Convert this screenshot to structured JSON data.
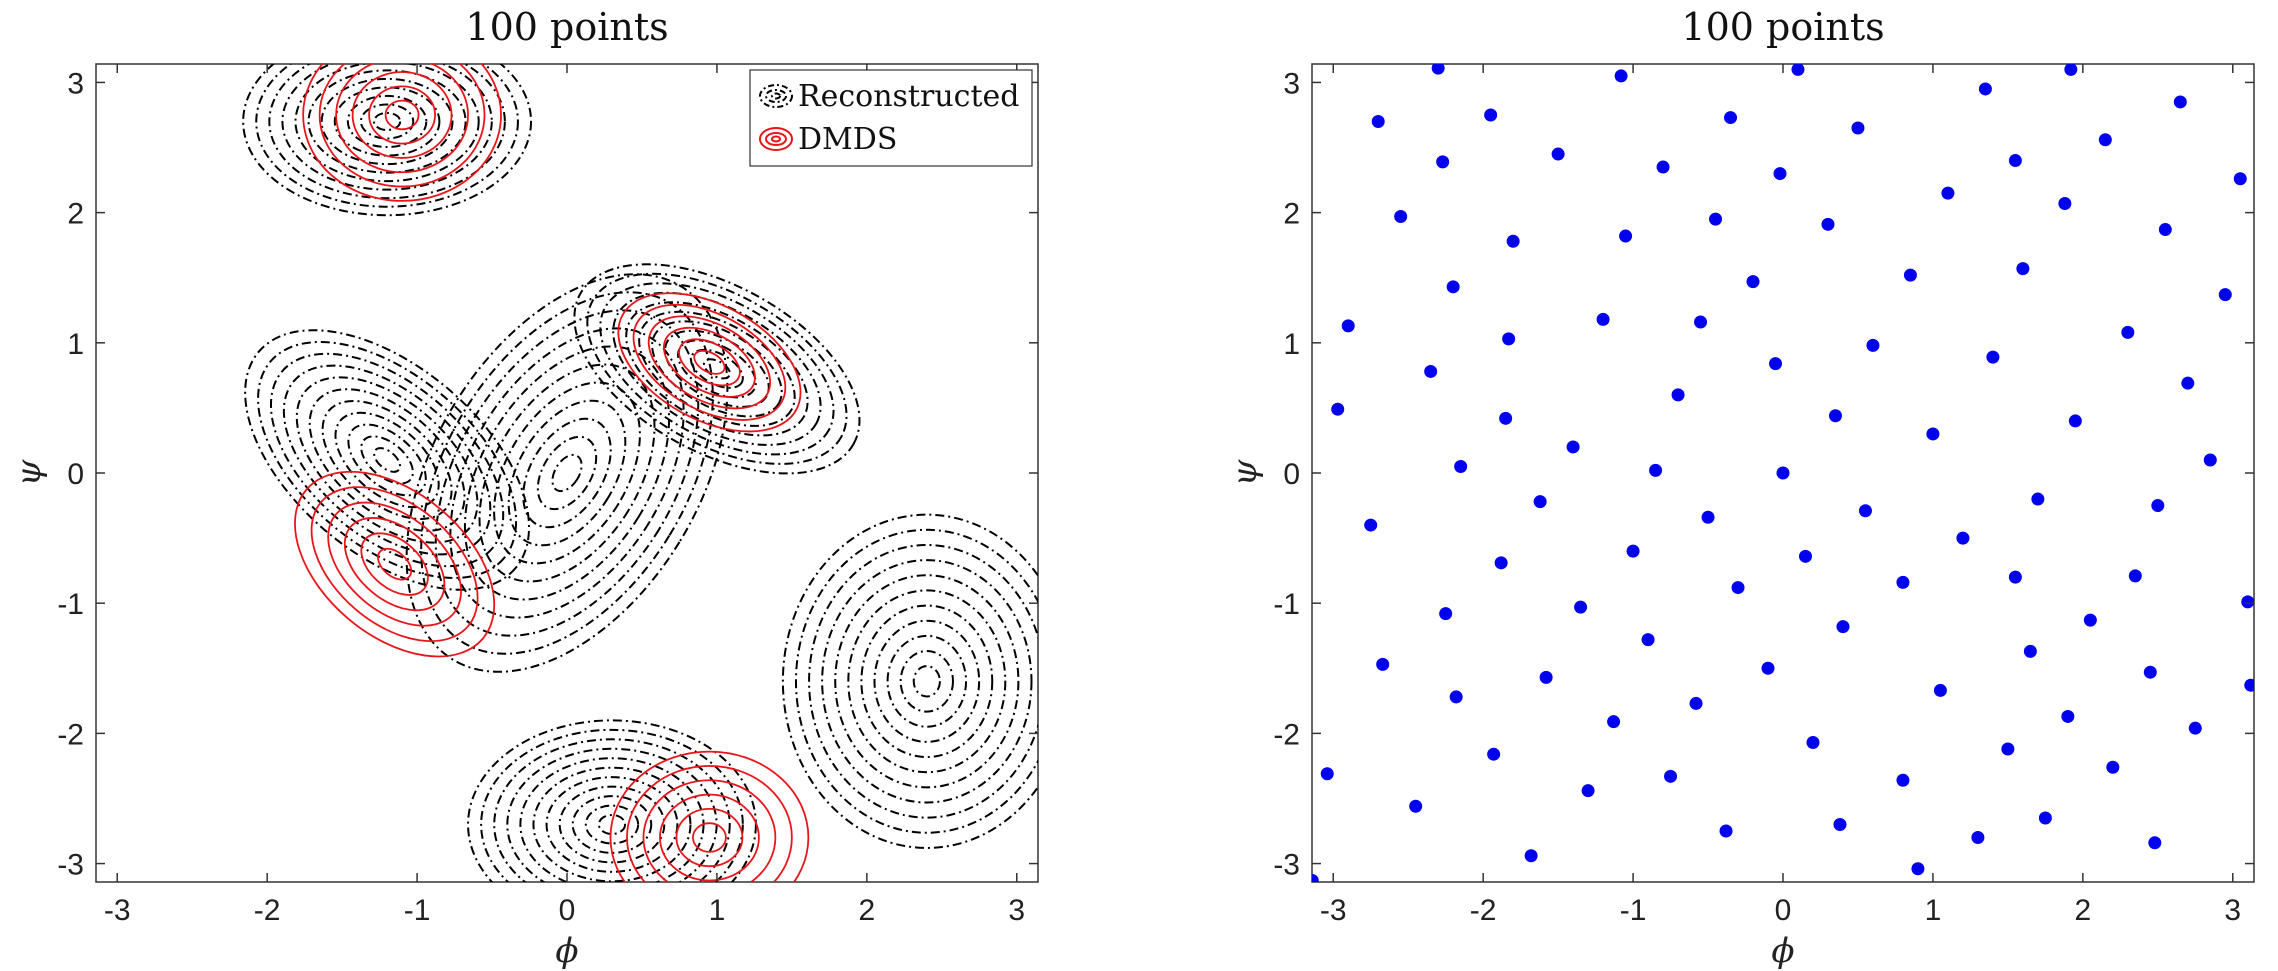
{
  "chart_data": [
    {
      "type": "contour",
      "title": "100 points",
      "xlabel": "ϕ",
      "ylabel": "ψ",
      "xlim": [
        -3.14159,
        3.14159
      ],
      "ylim": [
        -3.14159,
        3.14159
      ],
      "xticks": [
        "-3",
        "-2",
        "-1",
        "0",
        "1",
        "2",
        "3"
      ],
      "yticks": [
        "3",
        "2",
        "1",
        "0",
        "-1",
        "-2",
        "-3"
      ],
      "legend": {
        "placement": "top-right",
        "entries": [
          "Reconstructed",
          "DMDS"
        ]
      },
      "series": [
        {
          "name": "Reconstructed",
          "color": "#000000",
          "style": "dash-dot",
          "features": [
            {
              "kind": "min",
              "x": 0.0,
              "y": 0.0,
              "sx": 0.55,
              "sy": 1.05,
              "rot": -0.55,
              "amp": 1.2
            },
            {
              "kind": "min",
              "x": 0.3,
              "y": -2.7,
              "sx": 0.6,
              "sy": 0.5,
              "rot": 0.0,
              "amp": 0.7
            },
            {
              "kind": "min",
              "x": 2.4,
              "y": -1.6,
              "sx": 0.6,
              "sy": 0.8,
              "rot": 0.0,
              "amp": 0.7
            },
            {
              "kind": "min",
              "x": -1.2,
              "y": 2.7,
              "sx": 0.6,
              "sy": 0.45,
              "rot": 0.0,
              "amp": 0.5
            },
            {
              "kind": "max",
              "x": -1.2,
              "y": 0.1,
              "sx": 0.7,
              "sy": 0.45,
              "rot": -0.7,
              "amp": 0.7
            },
            {
              "kind": "max",
              "x": 1.0,
              "y": 0.8,
              "sx": 0.65,
              "sy": 0.4,
              "rot": -0.5,
              "amp": 0.7
            }
          ]
        },
        {
          "name": "DMDS",
          "color": "#e8161b",
          "style": "solid",
          "features": [
            {
              "kind": "max",
              "x": -1.15,
              "y": -0.7,
              "sx": 0.35,
              "sy": 0.25,
              "rot": -0.7
            },
            {
              "kind": "max",
              "x": 0.95,
              "y": 0.85,
              "sx": 0.3,
              "sy": 0.2,
              "rot": -0.5
            },
            {
              "kind": "min",
              "x": 0.95,
              "y": -2.8,
              "sx": 0.3,
              "sy": 0.3,
              "rot": 0.0
            },
            {
              "kind": "min",
              "x": -1.1,
              "y": 2.75,
              "sx": 0.3,
              "sy": 0.3,
              "rot": 0.0
            }
          ]
        }
      ]
    },
    {
      "type": "scatter",
      "title": "100 points",
      "xlabel": "ϕ",
      "ylabel": "ψ",
      "xlim": [
        -3.14159,
        3.14159
      ],
      "ylim": [
        -3.14159,
        3.14159
      ],
      "xticks": [
        "-3",
        "-2",
        "-1",
        "0",
        "1",
        "2",
        "3"
      ],
      "yticks": [
        "3",
        "2",
        "1",
        "0",
        "-1",
        "-2",
        "-3"
      ],
      "grid": false,
      "color": "#0000ee",
      "points": [
        [
          -3.14,
          -3.13
        ],
        [
          -3.04,
          -2.31
        ],
        [
          -2.97,
          0.49
        ],
        [
          -2.9,
          1.13
        ],
        [
          -2.75,
          -0.4
        ],
        [
          -2.7,
          2.7
        ],
        [
          -2.67,
          -1.47
        ],
        [
          -2.55,
          1.97
        ],
        [
          -2.45,
          -2.56
        ],
        [
          -2.35,
          0.78
        ],
        [
          -2.3,
          3.11
        ],
        [
          -2.27,
          2.39
        ],
        [
          -2.25,
          -1.08
        ],
        [
          -2.2,
          1.43
        ],
        [
          -2.18,
          -1.72
        ],
        [
          -2.15,
          0.05
        ],
        [
          -1.95,
          2.75
        ],
        [
          -1.93,
          -2.16
        ],
        [
          -1.88,
          -0.69
        ],
        [
          -1.85,
          0.42
        ],
        [
          -1.83,
          1.03
        ],
        [
          -1.8,
          1.78
        ],
        [
          -1.68,
          -2.94
        ],
        [
          -1.62,
          -0.22
        ],
        [
          -1.58,
          -1.57
        ],
        [
          -1.5,
          2.45
        ],
        [
          -1.4,
          0.2
        ],
        [
          -1.35,
          -1.03
        ],
        [
          -1.3,
          -2.44
        ],
        [
          -1.2,
          1.18
        ],
        [
          -1.13,
          -1.91
        ],
        [
          -1.08,
          3.05
        ],
        [
          -1.05,
          1.82
        ],
        [
          -1.0,
          -0.6
        ],
        [
          -0.9,
          -1.28
        ],
        [
          -0.85,
          0.02
        ],
        [
          -0.8,
          2.35
        ],
        [
          -0.75,
          -2.33
        ],
        [
          -0.7,
          0.6
        ],
        [
          -0.58,
          -1.77
        ],
        [
          -0.55,
          1.16
        ],
        [
          -0.5,
          -0.34
        ],
        [
          -0.45,
          1.95
        ],
        [
          -0.38,
          -2.75
        ],
        [
          -0.35,
          2.73
        ],
        [
          -0.3,
          -0.88
        ],
        [
          -0.2,
          1.47
        ],
        [
          -0.1,
          -1.5
        ],
        [
          -0.05,
          0.84
        ],
        [
          0.0,
          0.0
        ],
        [
          -0.02,
          2.3
        ],
        [
          0.1,
          3.1
        ],
        [
          0.15,
          -0.64
        ],
        [
          0.2,
          -2.07
        ],
        [
          0.3,
          1.91
        ],
        [
          0.35,
          0.44
        ],
        [
          0.38,
          -2.7
        ],
        [
          0.4,
          -1.18
        ],
        [
          0.5,
          2.65
        ],
        [
          0.55,
          -0.29
        ],
        [
          0.6,
          0.98
        ],
        [
          0.8,
          -0.84
        ],
        [
          0.8,
          -2.36
        ],
        [
          0.85,
          1.52
        ],
        [
          0.9,
          -3.04
        ],
        [
          1.0,
          0.3
        ],
        [
          1.05,
          -1.67
        ],
        [
          1.1,
          2.15
        ],
        [
          1.2,
          -0.5
        ],
        [
          1.3,
          -2.8
        ],
        [
          1.35,
          2.95
        ],
        [
          1.4,
          0.89
        ],
        [
          1.5,
          -2.12
        ],
        [
          1.55,
          2.4
        ],
        [
          1.55,
          -0.8
        ],
        [
          1.6,
          1.57
        ],
        [
          1.65,
          -1.37
        ],
        [
          1.7,
          -0.2
        ],
        [
          1.75,
          -2.65
        ],
        [
          1.88,
          2.07
        ],
        [
          1.9,
          -1.87
        ],
        [
          1.92,
          3.1
        ],
        [
          1.95,
          0.4
        ],
        [
          2.05,
          -1.13
        ],
        [
          2.15,
          2.56
        ],
        [
          2.2,
          -2.26
        ],
        [
          2.3,
          1.08
        ],
        [
          2.35,
          -0.79
        ],
        [
          2.45,
          -1.53
        ],
        [
          2.48,
          -2.84
        ],
        [
          2.5,
          -0.25
        ],
        [
          2.55,
          1.87
        ],
        [
          2.65,
          2.85
        ],
        [
          2.7,
          0.69
        ],
        [
          2.75,
          -1.96
        ],
        [
          2.85,
          0.1
        ],
        [
          2.95,
          1.37
        ],
        [
          3.05,
          2.26
        ],
        [
          3.1,
          -0.99
        ],
        [
          3.12,
          -1.63
        ]
      ]
    }
  ]
}
